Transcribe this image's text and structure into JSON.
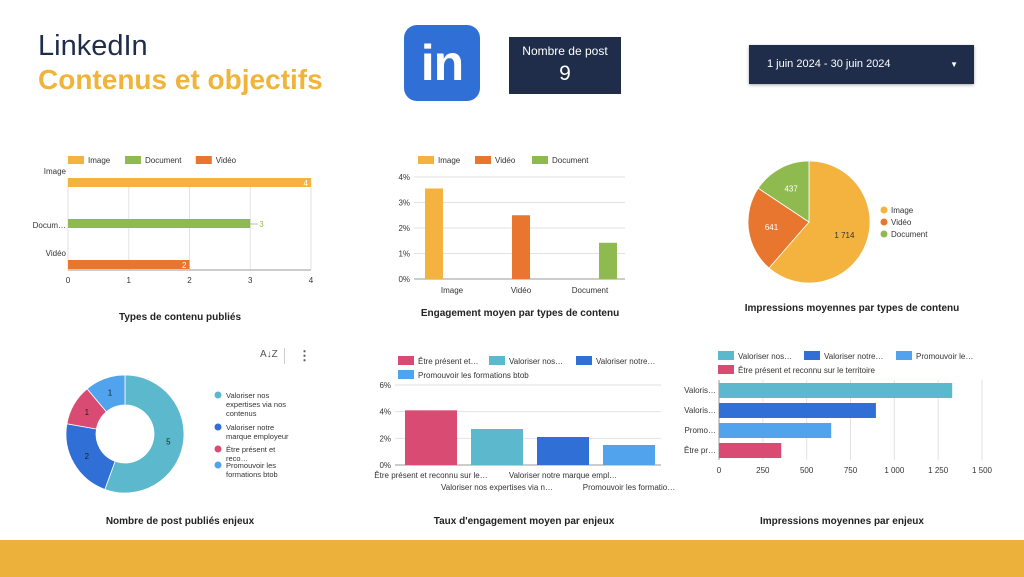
{
  "header": {
    "title_line1": "LinkedIn",
    "title_line2": "Contenus et objectifs",
    "logo_text": "in",
    "kpi_label": "Nombre de post",
    "kpi_value": "9",
    "date_range": "1 juin 2024 - 30 juin 2024"
  },
  "colors": {
    "navy": "#1f2d4a",
    "accent_yellow": "#f0b43a",
    "footer": "#ecb13b",
    "image": "#f4b23e",
    "document": "#8fba4f",
    "video": "#e8762e",
    "teal": "#5bb8cd",
    "blue": "#2f6fd6",
    "lightblue": "#52a3ee",
    "pink": "#d94b72"
  },
  "toolbar": {
    "sort_icon_label": "A↓Z",
    "more_icon_label": "⋮"
  },
  "chart_data": [
    {
      "type": "bar",
      "orientation": "horizontal",
      "title": "Types de contenu publiés",
      "categories": [
        "Image",
        "Docum…",
        "Vidéo"
      ],
      "legend": [
        "Image",
        "Document",
        "Vidéo"
      ],
      "values": [
        4,
        3,
        2
      ],
      "data_labels": [
        "4",
        "3",
        "2"
      ],
      "xticks": [
        "0",
        "1",
        "2",
        "3",
        "4"
      ],
      "xlim": [
        0,
        4
      ]
    },
    {
      "type": "bar",
      "title": "Engagement moyen par types de contenu",
      "categories": [
        "Image",
        "Vidéo",
        "Document"
      ],
      "legend": [
        "Image",
        "Vidéo",
        "Document"
      ],
      "values": [
        3.55,
        2.5,
        1.42
      ],
      "yticks": [
        "0%",
        "1%",
        "2%",
        "3%",
        "4%"
      ],
      "ylim": [
        0,
        4
      ]
    },
    {
      "type": "pie",
      "title": "Impressions moyennes par types de contenu",
      "labels": [
        "Image",
        "Vidéo",
        "Document"
      ],
      "values": [
        1714,
        641,
        437
      ],
      "value_labels": [
        "1 714",
        "641",
        "437"
      ]
    },
    {
      "type": "pie",
      "subtype": "donut",
      "title": "Nombre de post publiés enjeux",
      "labels": [
        "Valoriser nos expertises via nos contenus",
        "Valoriser notre marque employeur",
        "Être présent et reco…",
        "Promouvoir les formations btob"
      ],
      "values": [
        5,
        2,
        1,
        1
      ],
      "value_labels": [
        "5",
        "2",
        "1",
        "1"
      ]
    },
    {
      "type": "bar",
      "title": "Taux d'engagement moyen par enjeux",
      "legend": [
        "Être présent et…",
        "Valoriser nos…",
        "Valoriser notre…",
        "Promouvoir les formations btob"
      ],
      "categories": [
        "Être présent et reconnu sur le…",
        "Valoriser nos expertises via n…",
        "Valoriser notre marque empl…",
        "Promouvoir les formatio…"
      ],
      "values": [
        4.1,
        2.7,
        2.1,
        1.5
      ],
      "yticks": [
        "0%",
        "2%",
        "4%",
        "6%"
      ],
      "ylim": [
        0,
        6
      ]
    },
    {
      "type": "bar",
      "orientation": "horizontal",
      "title": "Impressions moyennes par enjeux",
      "legend": [
        "Valoriser nos…",
        "Valoriser notre…",
        "Promouvoir le…",
        "Être présent et reconnu sur le territoire"
      ],
      "categories": [
        "Valoris…",
        "Valoris…",
        "Promo…",
        "Être pr…"
      ],
      "values": [
        1330,
        895,
        640,
        355
      ],
      "xticks": [
        "0",
        "250",
        "500",
        "750",
        "1 000",
        "1 250",
        "1 500"
      ],
      "xlim": [
        0,
        1500
      ]
    }
  ]
}
